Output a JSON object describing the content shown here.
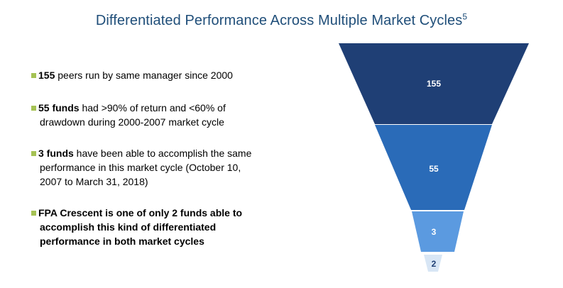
{
  "header": {
    "title": "Differentiated Performance Across Multiple Market Cycles",
    "footnote": "5"
  },
  "bullets": [
    {
      "bold": "155",
      "line1": " peers run by same manager since 2000",
      "line2": "",
      "line3": ""
    },
    {
      "bold": "55 funds",
      "line1": " had >90% of return and <60% of",
      "line2": "drawdown during 2000-2007  market cycle",
      "line3": ""
    },
    {
      "bold": "3 funds",
      "line1": " have been able to accomplish the same",
      "line2": "performance in this market cycle (October 10,",
      "line3": "2007 to March 31, 2018)"
    },
    {
      "bold": "FPA Crescent is one of only 2 funds able to",
      "line1": "",
      "line2": "accomplish this kind of differentiated",
      "line3": "performance in both market cycles"
    }
  ],
  "funnel": {
    "tiers": [
      {
        "label": "155",
        "color": "#1f3f75",
        "text_color": "#ffffff"
      },
      {
        "label": "55",
        "color": "#2a6bb8",
        "text_color": "#ffffff"
      },
      {
        "label": "3",
        "color": "#5b9ae0",
        "text_color": "#ffffff"
      },
      {
        "label": "2",
        "color": "#d8e6f5",
        "text_color": "#1f3f75"
      }
    ]
  },
  "colors": {
    "title": "#1f4e79",
    "bullet_marker": "#a5c254"
  }
}
